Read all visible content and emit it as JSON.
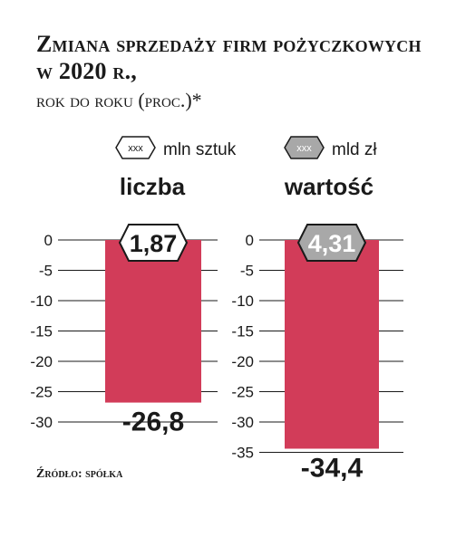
{
  "title": "Zmiana sprzedaży firm pożyczkowych w 2020 r.,",
  "subtitle": "rok do roku (proc.)*",
  "source": "Źródło: spółka",
  "legend": [
    {
      "marker": "xxx",
      "label": "mln sztuk",
      "style": "white"
    },
    {
      "marker": "xxx",
      "label": "mld zł",
      "style": "gray"
    }
  ],
  "colors": {
    "bar": "#d23c59",
    "badge_gray": "#a8a8a8",
    "badge_white": "#ffffff",
    "gridline": "#1a1a1a"
  },
  "chart_data": [
    {
      "type": "bar",
      "title": "liczba",
      "ylim": [
        -30,
        0
      ],
      "yticks": [
        "0",
        "-5",
        "-10",
        "-15",
        "-20",
        "-25",
        "-30"
      ],
      "values": [
        -26.8
      ],
      "value_label": "-26,8",
      "badge": {
        "text": "1,87",
        "style": "white"
      }
    },
    {
      "type": "bar",
      "title": "wartość",
      "ylim": [
        -35,
        0
      ],
      "yticks": [
        "0",
        "-5",
        "-10",
        "-15",
        "-20",
        "-25",
        "-30",
        "-35"
      ],
      "values": [
        -34.4
      ],
      "value_label": "-34,4",
      "badge": {
        "text": "4,31",
        "style": "gray"
      }
    }
  ]
}
